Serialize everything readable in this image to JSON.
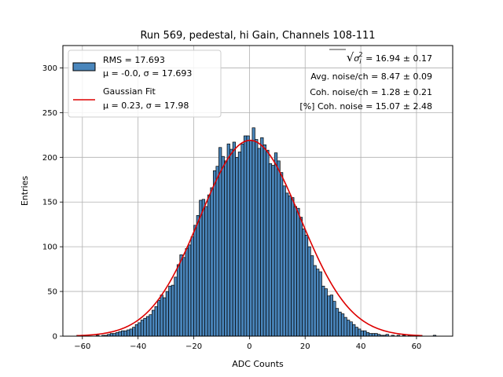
{
  "chart_data": {
    "type": "bar",
    "title": "Run 569, pedestal, hi Gain, Channels 108-111",
    "xlabel": "ADC Counts",
    "ylabel": "Entries",
    "xlim": [
      -67,
      73
    ],
    "ylim": [
      0,
      325
    ],
    "xticks": [
      -60,
      -40,
      -20,
      0,
      20,
      40,
      60
    ],
    "yticks": [
      0,
      50,
      100,
      150,
      200,
      250,
      300
    ],
    "grid": true,
    "legend_position": "top-left",
    "bin_width": 1,
    "bin_start": -62,
    "histogram_values": [
      1,
      0,
      0,
      0,
      0,
      0,
      0,
      1,
      0,
      1,
      1,
      2,
      3,
      3,
      4,
      5,
      6,
      6,
      7,
      8,
      10,
      13,
      15,
      18,
      20,
      22,
      24,
      29,
      33,
      40,
      46,
      43,
      50,
      56,
      57,
      66,
      80,
      91,
      88,
      98,
      102,
      111,
      124,
      135,
      152,
      153,
      145,
      158,
      166,
      185,
      190,
      211,
      201,
      196,
      215,
      209,
      217,
      200,
      206,
      215,
      224,
      224,
      219,
      233,
      220,
      210,
      222,
      214,
      208,
      193,
      191,
      205,
      196,
      183,
      168,
      160,
      157,
      155,
      145,
      143,
      133,
      120,
      113,
      100,
      90,
      79,
      75,
      72,
      56,
      53,
      45,
      46,
      39,
      31,
      27,
      25,
      21,
      18,
      16,
      13,
      10,
      8,
      6,
      6,
      4,
      3,
      3,
      3,
      2,
      1,
      1,
      2,
      0,
      1,
      0,
      1,
      0,
      1,
      0,
      1,
      0,
      0,
      0,
      1,
      0,
      0,
      0,
      0,
      1
    ],
    "series": [
      {
        "name": "RMS = 17.693",
        "name_line2": "μ = -0.0, σ = 17.693",
        "kind": "histogram",
        "color": "#4a86bc",
        "edgecolor": "#000000"
      },
      {
        "name": "Gaussian Fit",
        "name_line2": "μ = 0.23, σ = 17.98",
        "kind": "line",
        "color": "#dd0000",
        "mu": 0.23,
        "sigma": 17.98,
        "amplitude": 219,
        "x_range": [
          -62,
          62
        ]
      }
    ],
    "annotations": {
      "sqrt_prefix": "√",
      "sigma_symbol": "σ",
      "sigma_sub": "i",
      "sigma_sup": "2",
      "line1_value": " = 16.94 ± 0.17",
      "line2": "Avg. noise/ch = 8.47 ± 0.09",
      "line3": "Coh. noise/ch = 1.28 ± 0.21",
      "line4": "[%] Coh. noise = 15.07 ± 2.48"
    }
  }
}
